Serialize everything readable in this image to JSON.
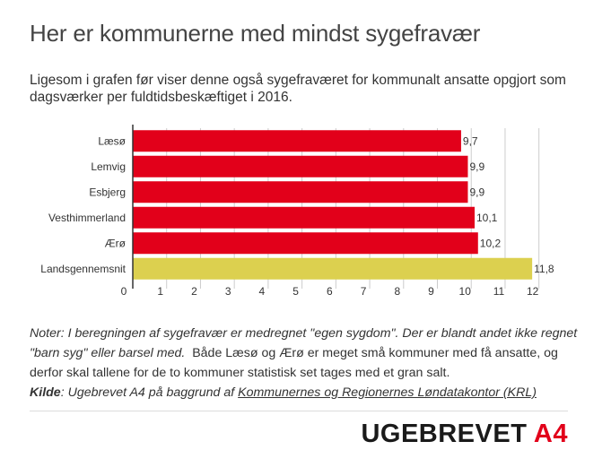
{
  "title": "Her er kommunerne med mindst sygefravær",
  "subtitle": "Ligesom i grafen før viser denne også sygefraværet for kommunalt ansatte opgjort som dagsværker per fuldtidsbeskæftiget i 2016.",
  "notes": {
    "line1": "Noter: I beregningen af sygefravær er medregnet \"egen sygdom\". Der er blandt andet ikke regnet \"barn syg\" eller barsel med.",
    "line2": "Både Læsø og Ærø er meget små kommuner med få ansatte, og derfor skal tallene for de to kommuner statistisk set tages med et gran salt.",
    "source_label": "Kilde",
    "source_text": ": Ugebrevet A4 på baggrund af ",
    "source_link": "Kommunernes og Regionernes Løndatakontor (KRL)"
  },
  "logo": {
    "main": "UGEBREVET",
    "accent": "A4"
  },
  "colors": {
    "primary_bar": "#e2001a",
    "highlight_bar": "#dcd04f",
    "grid": "#cccccc"
  },
  "chart_data": {
    "type": "bar",
    "orientation": "horizontal",
    "categories": [
      "Læsø",
      "Lemvig",
      "Esbjerg",
      "Vesthimmerland",
      "Ærø",
      "Landsgennemsnit"
    ],
    "values": [
      9.7,
      9.9,
      9.9,
      10.1,
      10.2,
      11.8
    ],
    "value_labels": [
      "9,7",
      "9,9",
      "9,9",
      "10,1",
      "10,2",
      "11,8"
    ],
    "bar_colors": [
      "#e2001a",
      "#e2001a",
      "#e2001a",
      "#e2001a",
      "#e2001a",
      "#dcd04f"
    ],
    "xlim": [
      0,
      12.3
    ],
    "xticks": [
      0,
      1,
      2,
      3,
      4,
      5,
      6,
      7,
      8,
      9,
      10,
      11,
      12
    ],
    "grid": true,
    "title": "",
    "xlabel": "",
    "ylabel": ""
  }
}
